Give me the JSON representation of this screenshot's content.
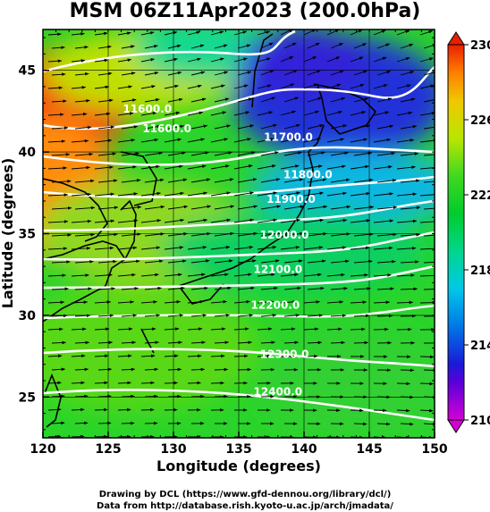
{
  "title": "MSM 06Z11Apr2023 (200.0hPa)",
  "x_axis": {
    "label": "Longitude (degrees)",
    "ticks": [
      120,
      125,
      130,
      135,
      140,
      145,
      150
    ],
    "range": [
      120,
      150
    ]
  },
  "y_axis": {
    "label": "Latitude  (degrees)",
    "ticks": [
      25,
      30,
      35,
      40,
      45
    ],
    "range": [
      22.5,
      47.5
    ]
  },
  "colorbar": {
    "ticks": [
      210,
      214,
      218,
      222,
      226,
      230
    ],
    "range": [
      210,
      230
    ],
    "stops": [
      {
        "v": 210,
        "c": "#d400d4"
      },
      {
        "v": 212,
        "c": "#5a00d8"
      },
      {
        "v": 213,
        "c": "#1a1ad8"
      },
      {
        "v": 215,
        "c": "#0078e6"
      },
      {
        "v": 217,
        "c": "#00c8e8"
      },
      {
        "v": 219,
        "c": "#00d68c"
      },
      {
        "v": 221,
        "c": "#00cc2c"
      },
      {
        "v": 223,
        "c": "#40d820"
      },
      {
        "v": 225,
        "c": "#b8e600"
      },
      {
        "v": 227,
        "c": "#f0c800"
      },
      {
        "v": 228.5,
        "c": "#ff8000"
      },
      {
        "v": 230,
        "c": "#e82000"
      }
    ]
  },
  "contour_labels": [
    {
      "text": "11600.0",
      "lon": 128.0,
      "lat": 42.4
    },
    {
      "text": "11600.0",
      "lon": 129.5,
      "lat": 41.2
    },
    {
      "text": "11700.0",
      "lon": 138.8,
      "lat": 40.7
    },
    {
      "text": "11800.0",
      "lon": 140.3,
      "lat": 38.4
    },
    {
      "text": "11900.0",
      "lon": 139.0,
      "lat": 36.9
    },
    {
      "text": "12000.0",
      "lon": 138.5,
      "lat": 34.7
    },
    {
      "text": "12100.0",
      "lon": 138.0,
      "lat": 32.6
    },
    {
      "text": "12200.0",
      "lon": 137.8,
      "lat": 30.4
    },
    {
      "text": "12300.0",
      "lon": 138.5,
      "lat": 27.4
    },
    {
      "text": "12400.0",
      "lon": 138.0,
      "lat": 25.1
    }
  ],
  "credits": {
    "line1": "Drawing by DCL (https://www.gfd-dennou.org/library/dcl/)",
    "line2": "Data from http://database.rish.kyoto-u.ac.jp/arch/jmadata/"
  }
}
